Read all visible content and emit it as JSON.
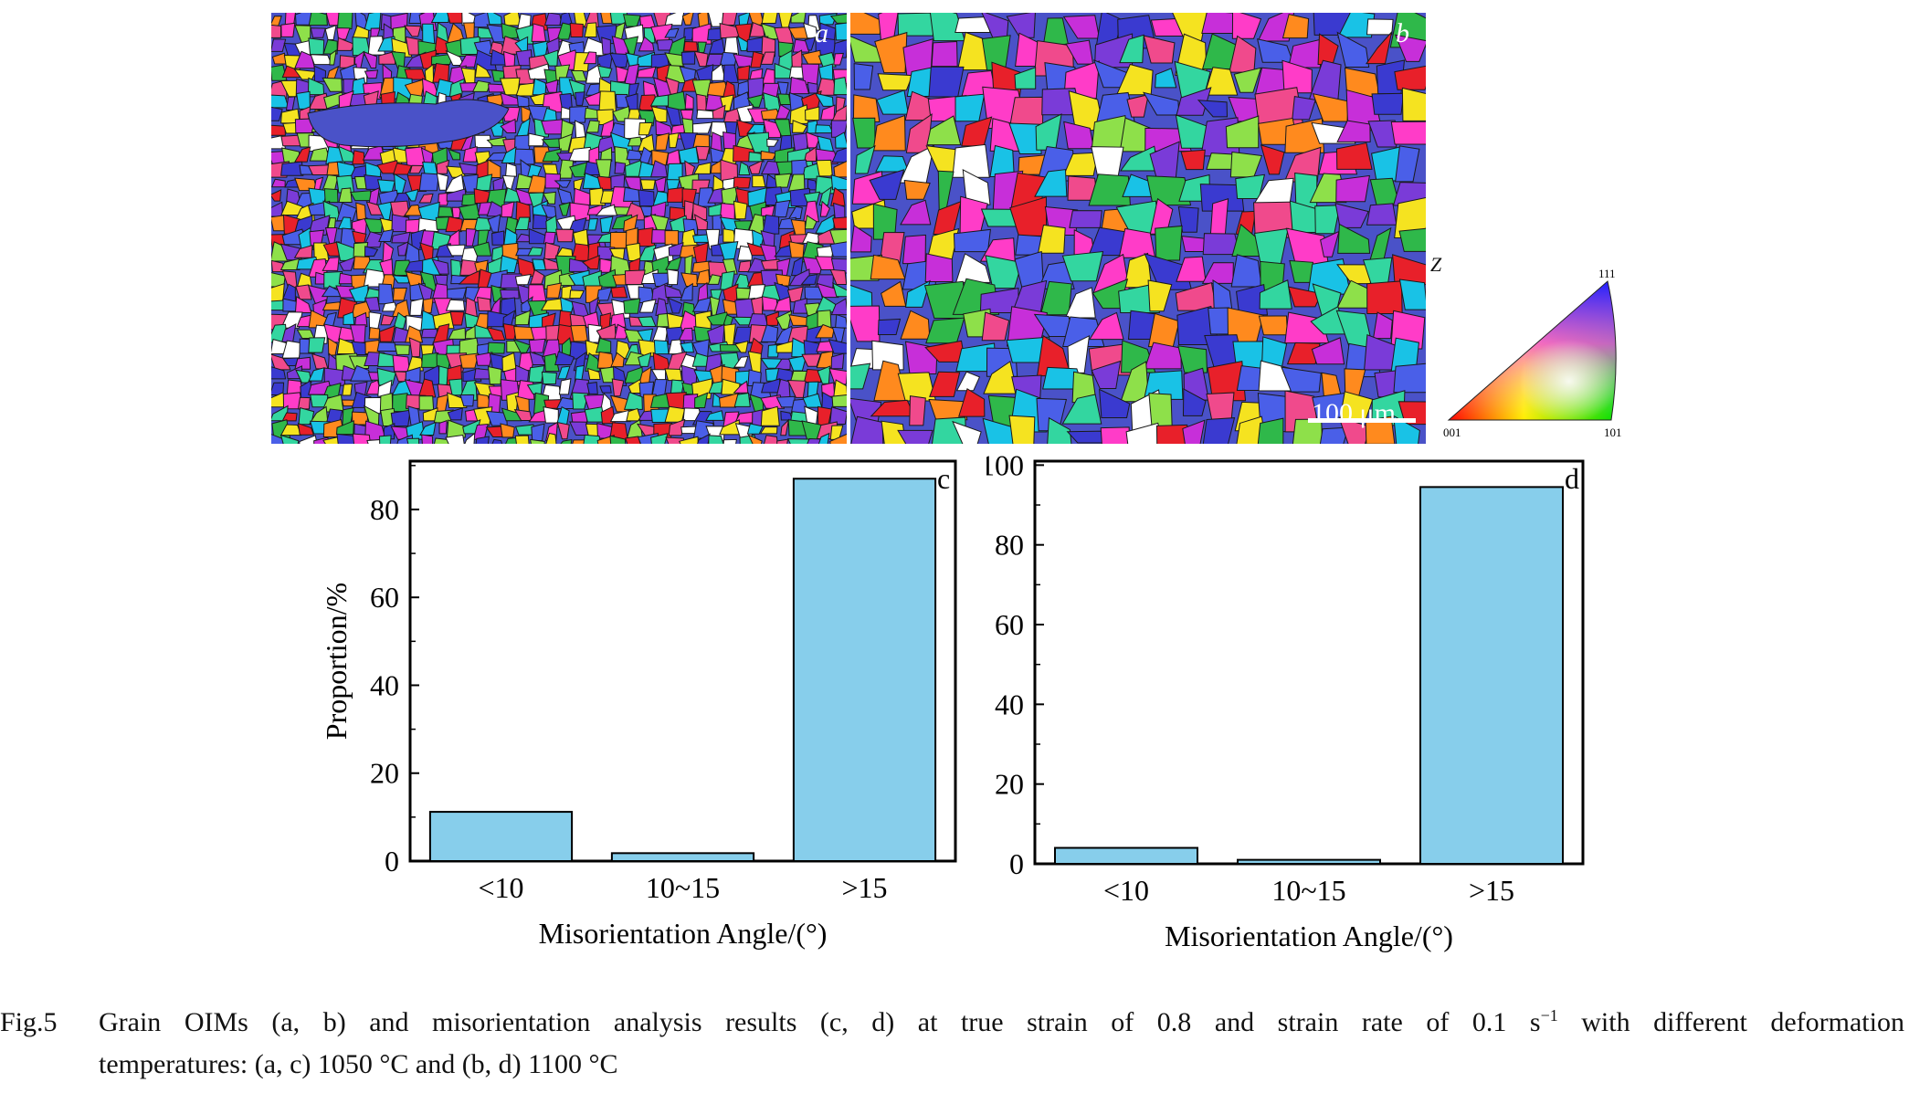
{
  "panels": {
    "a": "a",
    "b": "b"
  },
  "scale_bar": "100 μm",
  "ipf_legend": {
    "axis": "Z",
    "top": "111",
    "left": "001",
    "right": "101"
  },
  "chart_data": [
    {
      "type": "bar",
      "panel_letter": "c",
      "categories": [
        "<10",
        "10~15",
        ">15"
      ],
      "values": [
        11.2,
        1.8,
        87.0
      ],
      "xlabel": "Misorientation Angle/(°)",
      "ylabel": "Proportion/%",
      "ylim": [
        0,
        91
      ],
      "yticks": [
        0,
        20,
        40,
        60,
        80
      ],
      "bar_color": "#87ceeb"
    },
    {
      "type": "bar",
      "panel_letter": "d",
      "categories": [
        "<10",
        "10~15",
        ">15"
      ],
      "values": [
        4.0,
        1.0,
        94.5
      ],
      "xlabel": "Misorientation Angle/(°)",
      "ylabel": "",
      "ylim": [
        0,
        101
      ],
      "yticks": [
        0,
        20,
        40,
        60,
        80,
        100
      ],
      "bar_color": "#87ceeb"
    }
  ],
  "caption": {
    "label": "Fig.5",
    "text_1": "Grain OIMs (a, b) and misorientation analysis results (c, d) at true strain of 0.8 and strain rate of 0.1 s",
    "sup": "−1",
    "text_2": " with different deformation",
    "line_2": "temperatures: (a, c) 1050 °C and (b, d) 1100 °C"
  }
}
